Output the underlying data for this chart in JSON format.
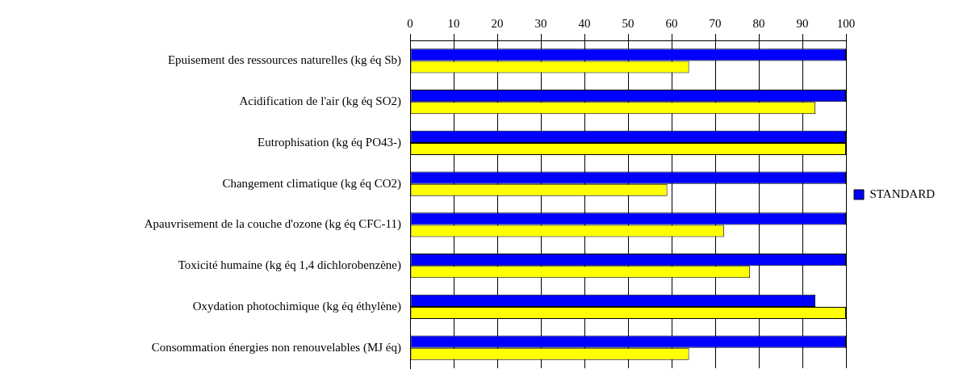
{
  "chart_data": {
    "type": "bar",
    "orientation": "horizontal",
    "categories": [
      "Epuisement des ressources naturelles (kg éq Sb)",
      "Acidification de l'air (kg éq SO2)",
      "Eutrophisation (kg éq PO43-)",
      "Changement climatique (kg éq CO2)",
      "Apauvrisement de la couche d'ozone (kg éq CFC-11)",
      "Toxicité humaine (kg éq 1,4 dichlorobenzène)",
      "Oxydation photochimique (kg éq éthylène)",
      "Consommation énergies non renouvelables (MJ éq)"
    ],
    "series": [
      {
        "name": "STANDARD",
        "color": "#0000ff",
        "values": [
          100,
          100,
          100,
          100,
          100,
          100,
          93,
          100
        ]
      },
      {
        "color": "#ffff00",
        "values": [
          64,
          93,
          100,
          59,
          72,
          78,
          100,
          64
        ]
      }
    ],
    "xlim": [
      0,
      100
    ],
    "xticks": [
      0,
      10,
      20,
      30,
      40,
      50,
      60,
      70,
      80,
      90,
      100
    ],
    "grid": "x",
    "legend": "right"
  }
}
